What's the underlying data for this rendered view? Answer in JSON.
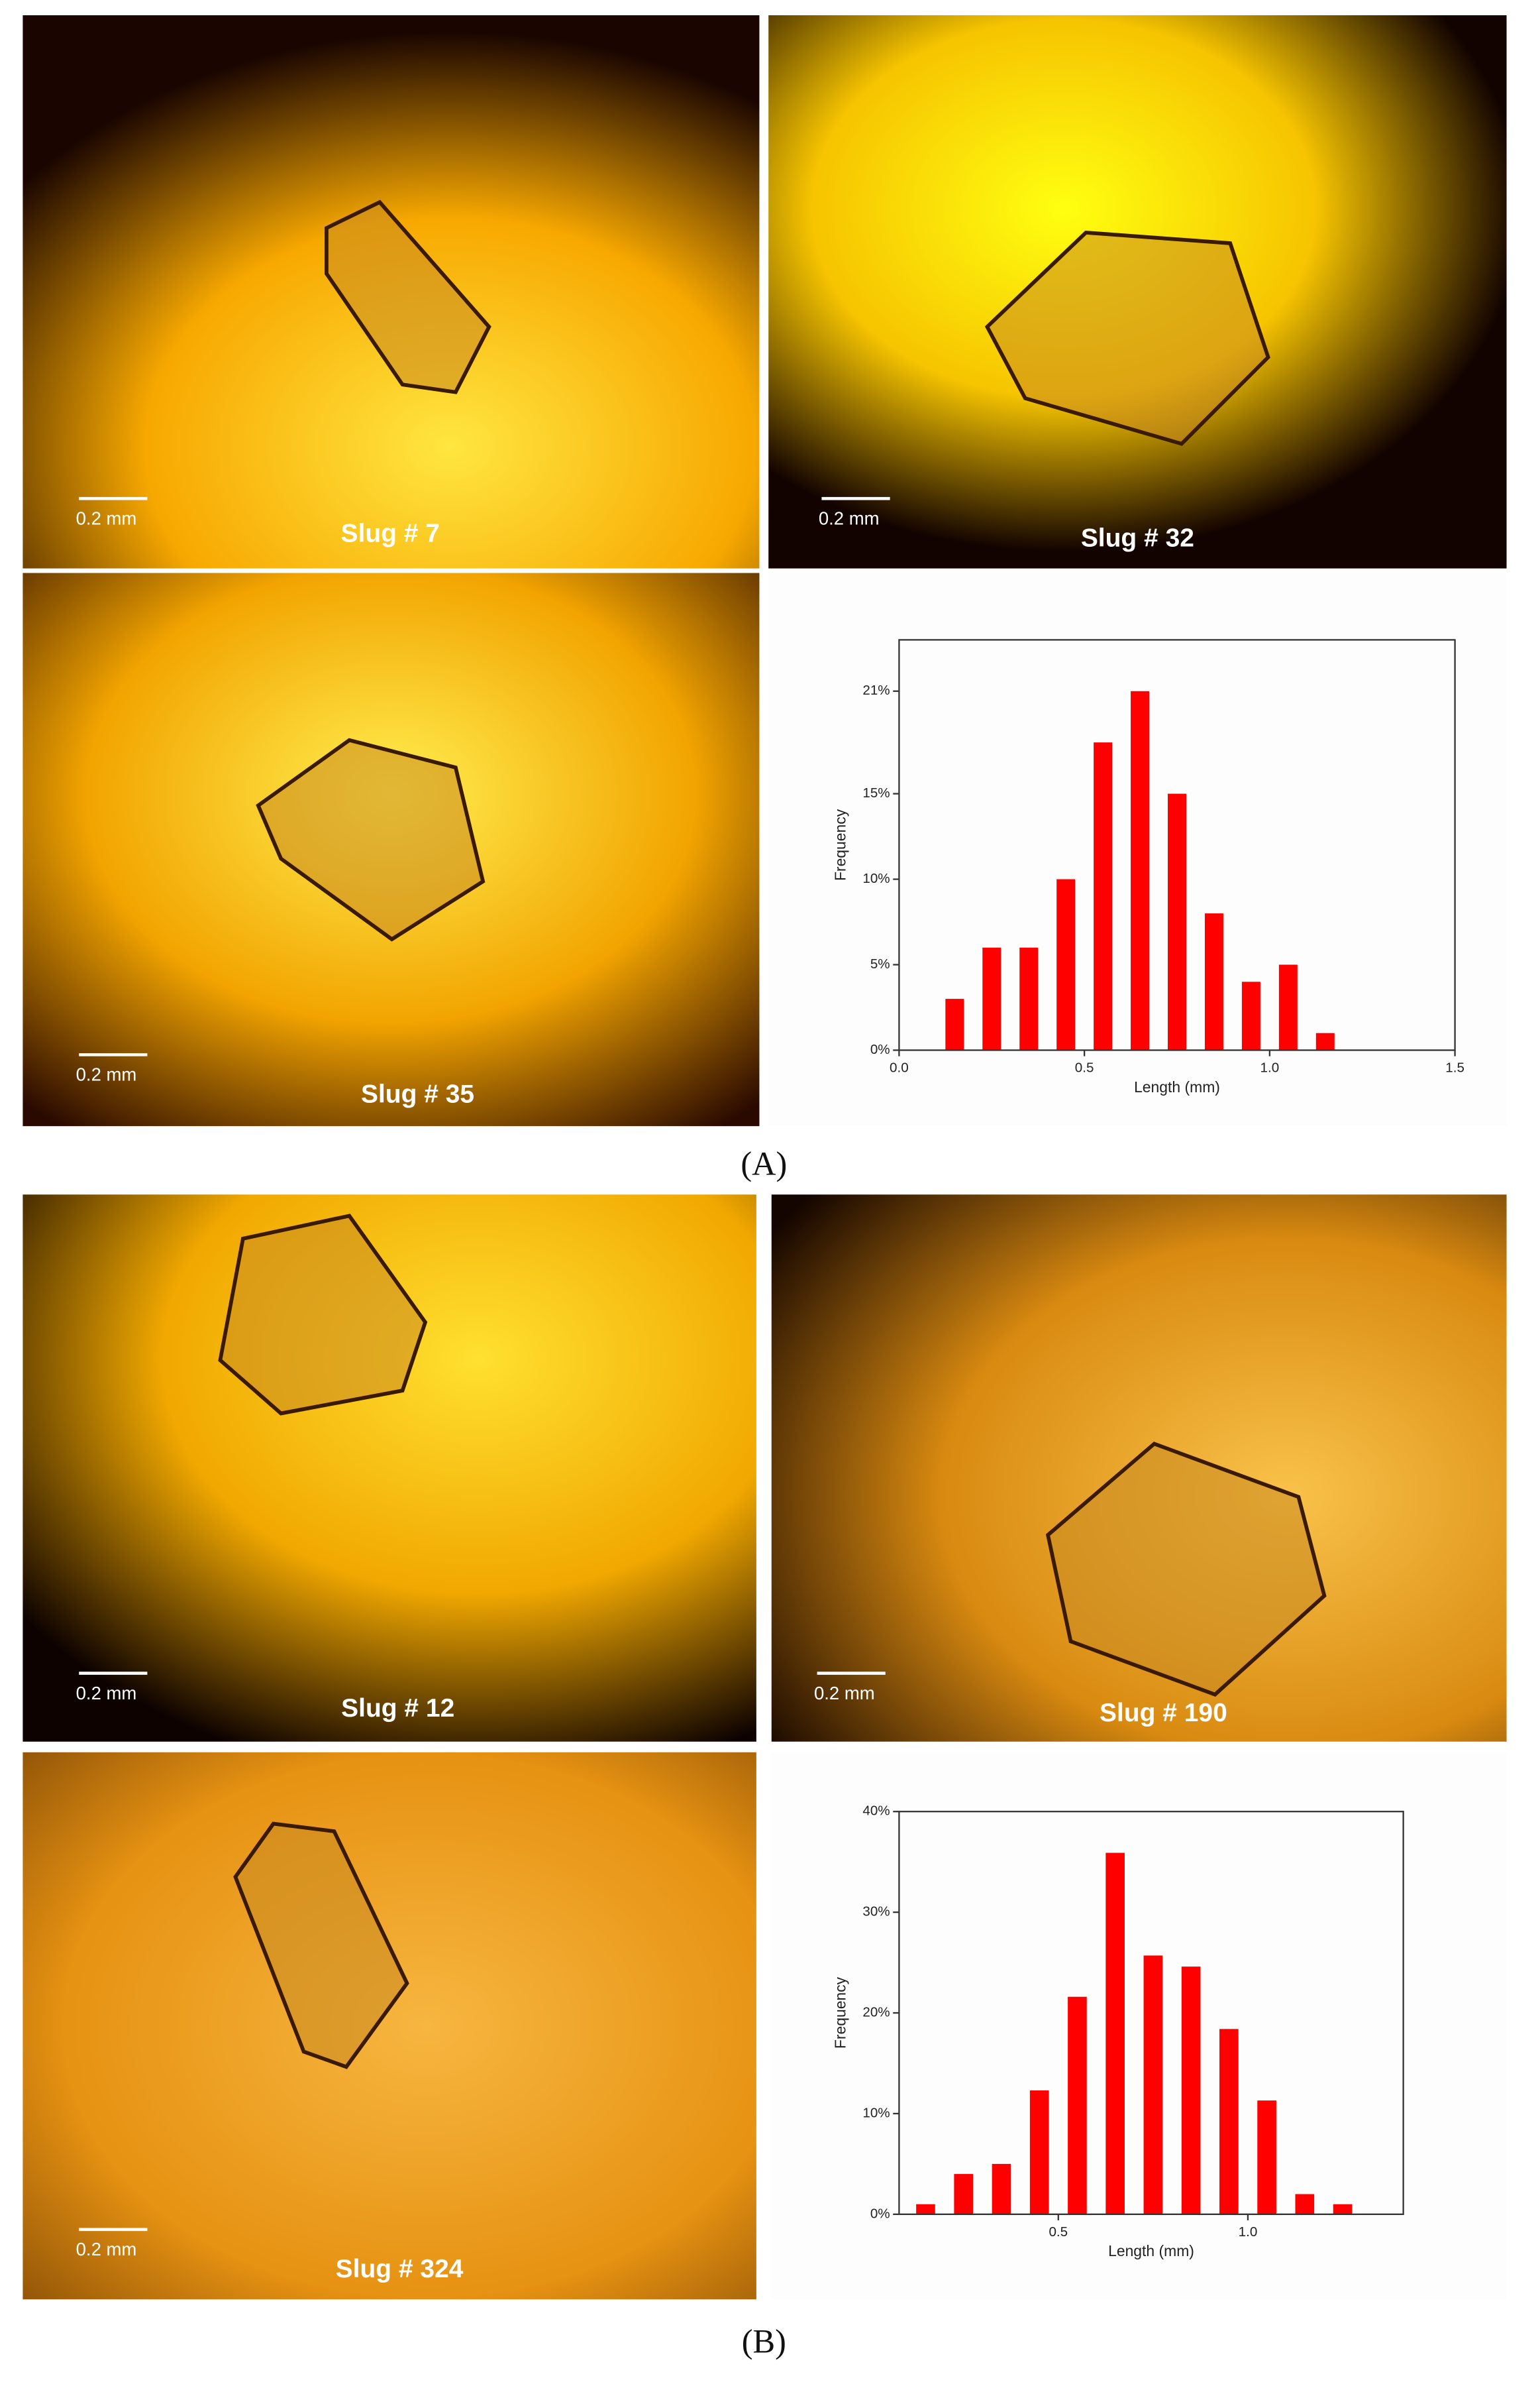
{
  "chart_data": [
    {
      "type": "bar",
      "xlabel": "Length (mm)",
      "ylabel": "Frequency",
      "color": "#ff0000",
      "x": [
        0.15,
        0.25,
        0.35,
        0.45,
        0.55,
        0.65,
        0.75,
        0.85,
        0.95,
        1.05,
        1.15
      ],
      "values": [
        3,
        6,
        6,
        10,
        18,
        21,
        15,
        8,
        4,
        5,
        1
      ],
      "xlim": [
        0,
        1.5
      ],
      "xticks": [
        {
          "value": 0,
          "label": "0.0"
        },
        0.5,
        {
          "value": 1,
          "label": "1.0"
        },
        1.5
      ],
      "ylim": [
        0,
        24
      ],
      "yticks": [
        {
          "value": 0,
          "label": "0%"
        },
        {
          "value": 5,
          "label": "5%"
        },
        {
          "value": 10,
          "label": "10%"
        },
        {
          "value": 15,
          "label": "15%"
        },
        {
          "value": 21,
          "label": "21%"
        }
      ]
    },
    {
      "type": "bar",
      "xlabel": "Length (mm)",
      "ylabel": "Frequency",
      "color": "#ff0000",
      "x": [
        0.15,
        0.25,
        0.35,
        0.45,
        0.55,
        0.65,
        0.75,
        0.85,
        0.95,
        1.05,
        1.15,
        1.25
      ],
      "values": [
        1,
        4,
        5,
        12.3,
        21.6,
        35.9,
        25.7,
        24.6,
        18.4,
        11.3,
        2,
        1
      ],
      "xlim": [
        0.08,
        1.41
      ],
      "xticks": [
        0.5,
        {
          "value": 1,
          "label": "1.0"
        }
      ],
      "ylim": [
        0,
        40
      ],
      "yticks": [
        {
          "value": 0,
          "label": "0%"
        },
        {
          "value": 10,
          "label": "10%"
        },
        {
          "value": 20,
          "label": "20%"
        },
        {
          "value": 30,
          "label": "30%"
        },
        {
          "value": 40,
          "label": "40%"
        }
      ]
    }
  ],
  "photos": [
    {
      "scale": "0.2 mm",
      "label": "Slug # 7"
    },
    {
      "scale": "0.2 mm",
      "label": "Slug # 32"
    },
    {
      "scale": "0.2 mm",
      "label": "Slug # 35"
    },
    {
      "scale": "0.2 mm",
      "label": "Slug # 12"
    },
    {
      "scale": "0.2 mm",
      "label": "Slug # 190"
    },
    {
      "scale": "0.2 mm",
      "label": "Slug # 324"
    }
  ],
  "panels": [
    "(A)",
    "(B)"
  ]
}
